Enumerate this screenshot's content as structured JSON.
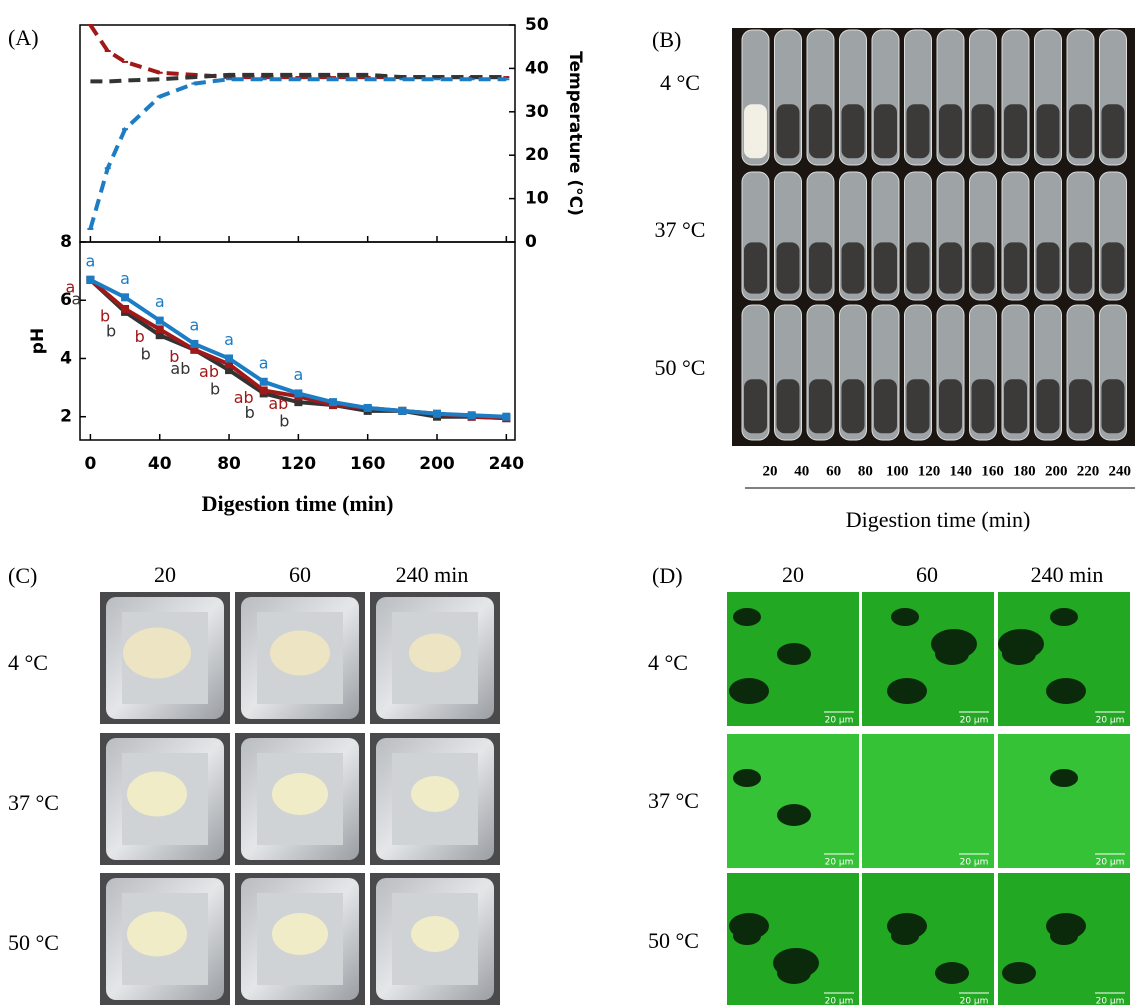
{
  "chart_data": [
    {
      "type": "line",
      "panel_label": "(A)",
      "y2label": "Temperature (°C)",
      "x": [
        0,
        10,
        20,
        40,
        60,
        80,
        100,
        120,
        140,
        160,
        180,
        200,
        220,
        240
      ],
      "xlim": [
        -6,
        245
      ],
      "xticks": [
        0,
        40,
        80,
        120,
        160,
        200,
        240
      ],
      "y2lim": [
        0,
        50
      ],
      "y2ticks": [
        0,
        10,
        20,
        30,
        40,
        50
      ],
      "series": [
        {
          "color": "#a01818",
          "axis": "y2",
          "values": [
            50,
            44,
            41.5,
            39,
            38.5,
            38,
            38,
            38,
            38,
            38,
            38,
            38,
            38,
            38
          ]
        },
        {
          "color": "#333333",
          "axis": "y2",
          "values": [
            37,
            37,
            37.2,
            37.5,
            38,
            38.5,
            38.5,
            38.5,
            38.5,
            38.5,
            38,
            38,
            38,
            38
          ]
        },
        {
          "color": "#1c7cc4",
          "axis": "y2",
          "values": [
            3,
            17,
            26,
            33.5,
            36.5,
            37.5,
            37.5,
            37.5,
            37.5,
            37.5,
            37.5,
            37.5,
            37.5,
            37.5
          ]
        }
      ]
    },
    {
      "type": "line",
      "ylabel": "pH",
      "xlabel": "Digestion time (min)",
      "x": [
        0,
        20,
        40,
        60,
        80,
        100,
        120,
        140,
        160,
        180,
        200,
        220,
        240
      ],
      "xlim": [
        -6,
        245
      ],
      "xticks": [
        0,
        40,
        80,
        120,
        160,
        200,
        240
      ],
      "ylim": [
        1.2,
        8
      ],
      "yticks": [
        2,
        4,
        6,
        8
      ],
      "series": [
        {
          "color": "#333333",
          "values": [
            6.7,
            5.6,
            4.8,
            4.3,
            3.6,
            2.8,
            2.5,
            2.4,
            2.2,
            2.2,
            2.0,
            2.0,
            1.95
          ],
          "letters": [
            "a",
            "b",
            "b",
            "ab",
            "b",
            "b",
            "b",
            null,
            null,
            null,
            null,
            null,
            null
          ]
        },
        {
          "color": "#a01818",
          "values": [
            6.7,
            5.7,
            5.0,
            4.3,
            3.8,
            2.9,
            2.7,
            2.4,
            2.3,
            2.2,
            2.1,
            2.0,
            1.95
          ],
          "letters": [
            "a",
            "b",
            "b",
            "b",
            "ab",
            "ab",
            "ab",
            null,
            null,
            null,
            null,
            null,
            null
          ]
        },
        {
          "color": "#1c7cc4",
          "values": [
            6.7,
            6.1,
            5.3,
            4.5,
            4.0,
            3.2,
            2.8,
            2.5,
            2.3,
            2.2,
            2.1,
            2.05,
            2.0
          ],
          "letters": [
            "a",
            "a",
            "a",
            "a",
            "a",
            "a",
            "a",
            null,
            null,
            null,
            null,
            null,
            null
          ]
        }
      ]
    }
  ],
  "panel_b": {
    "label": "(B)",
    "rows": [
      "4 °C",
      "37 °C",
      "50 °C"
    ],
    "columns": [
      "20",
      "40",
      "60",
      "80",
      "100",
      "120",
      "140",
      "160",
      "180",
      "200",
      "220",
      "240"
    ],
    "xlabel": "Digestion time (min)"
  },
  "panel_c": {
    "label": "(C)",
    "columns": [
      "20",
      "60",
      "240 min"
    ],
    "rows": [
      "4 °C",
      "37 °C",
      "50 °C"
    ]
  },
  "panel_d": {
    "label": "(D)",
    "columns": [
      "20",
      "60",
      "240 min"
    ],
    "rows": [
      "4 °C",
      "37 °C",
      "50 °C"
    ],
    "scale_bar": "20 µm"
  }
}
